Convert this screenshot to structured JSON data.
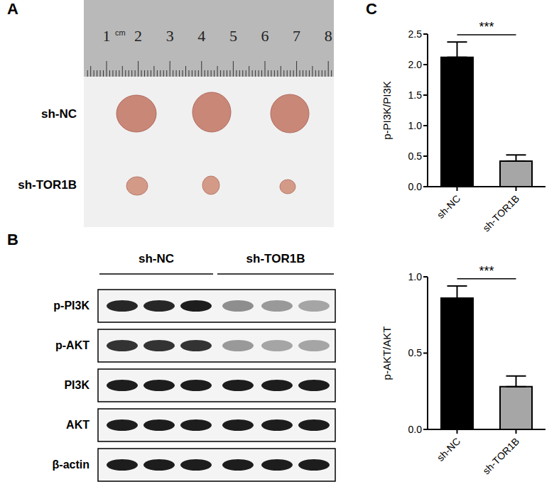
{
  "panel_labels": [
    "A",
    "B",
    "C"
  ],
  "photo": {
    "ruler": {
      "unit": "cm",
      "numbers": [
        1,
        2,
        3,
        4,
        5,
        6,
        7,
        8
      ]
    },
    "rows": [
      "sh-NC",
      "sh-TOR1B"
    ]
  },
  "blot": {
    "groups": [
      "sh-NC",
      "sh-TOR1B"
    ],
    "rows": [
      {
        "label": "p-PI3K",
        "intensity": [
          0.9,
          0.9,
          0.95,
          0.45,
          0.4,
          0.35
        ]
      },
      {
        "label": "p-AKT",
        "intensity": [
          0.85,
          0.85,
          0.85,
          0.4,
          0.35,
          0.35
        ]
      },
      {
        "label": "PI3K",
        "intensity": [
          0.95,
          0.95,
          0.95,
          0.95,
          0.95,
          0.95
        ]
      },
      {
        "label": "AKT",
        "intensity": [
          0.95,
          0.95,
          0.95,
          0.95,
          0.95,
          0.95
        ]
      },
      {
        "label": "β-actin",
        "intensity": [
          0.95,
          0.95,
          0.95,
          0.95,
          0.95,
          0.95
        ]
      }
    ]
  },
  "chart_data": [
    {
      "type": "bar",
      "y_label": "p-PI3K/PI3K",
      "categories": [
        "sh-NC",
        "sh-TOR1B"
      ],
      "values": [
        2.12,
        0.42
      ],
      "errors": [
        0.25,
        0.1
      ],
      "colors": [
        "#000000",
        "#a6a6a6"
      ],
      "ylim": [
        0,
        2.5
      ],
      "yticks": [
        {
          "value": 0,
          "label": "0.0"
        },
        0.5,
        {
          "value": 1,
          "label": "1.0"
        },
        1.5,
        {
          "value": 2,
          "label": "2.0"
        },
        2.5
      ],
      "annotation": "***",
      "grid": false
    },
    {
      "type": "bar",
      "y_label": "p-AKT/AKT",
      "categories": [
        "sh-NC",
        "sh-TOR1B"
      ],
      "values": [
        0.86,
        0.28
      ],
      "errors": [
        0.08,
        0.07
      ],
      "colors": [
        "#000000",
        "#a6a6a6"
      ],
      "ylim": [
        0,
        1
      ],
      "yticks": [
        {
          "value": 0,
          "label": "0.0"
        },
        0.5,
        {
          "value": 1,
          "label": "1.0"
        }
      ],
      "annotation": "***",
      "grid": false
    }
  ]
}
